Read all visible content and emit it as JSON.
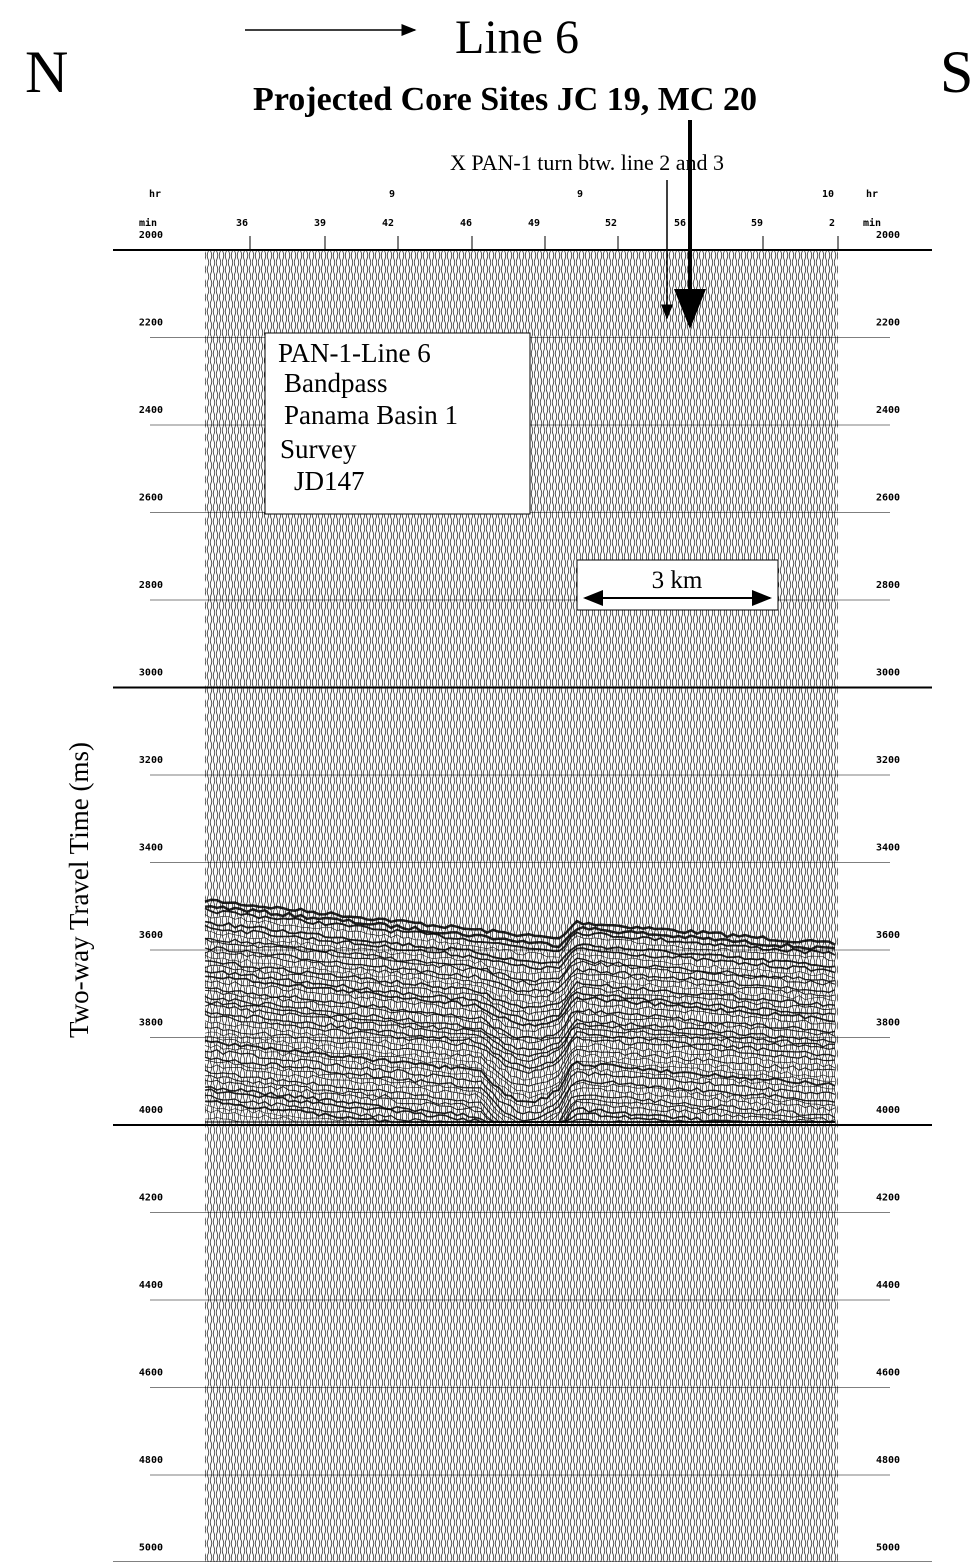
{
  "header": {
    "left": "N",
    "right": "S",
    "title": "Line 6",
    "subtitle": "Projected Core Sites JC 19, MC 20",
    "annotation": "X PAN-1 turn btw. line 2 and 3"
  },
  "legend_box": {
    "lines": [
      "PAN-1-Line 6",
      "Bandpass",
      "Panama Basin 1",
      "Survey",
      "JD147"
    ]
  },
  "scale_bar": {
    "label": "3 km"
  },
  "y_axis": {
    "label": "Two-way Travel Time (ms)",
    "ticks": [
      2000,
      2200,
      2400,
      2600,
      2800,
      3000,
      3200,
      3400,
      3600,
      3800,
      4000,
      4200,
      4400,
      4600,
      4800,
      5000
    ]
  },
  "time_axis": {
    "hr_row": [
      "hr",
      "9",
      "9",
      "10",
      "hr"
    ],
    "min_row": [
      "min",
      "36",
      "39",
      "42",
      "46",
      "49",
      "52",
      "56",
      "59",
      "2",
      "min"
    ]
  }
}
